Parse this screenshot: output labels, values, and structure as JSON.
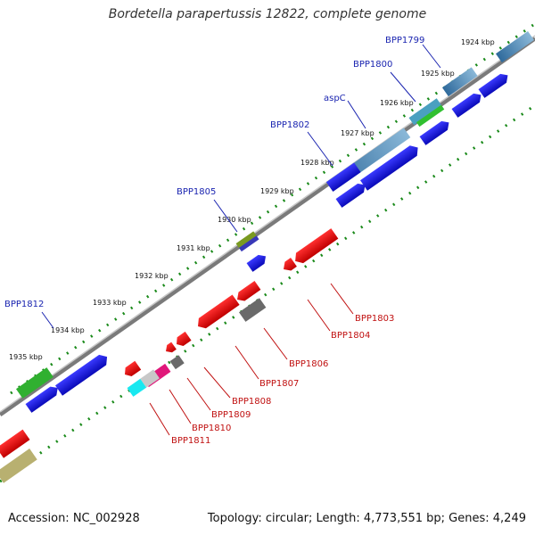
{
  "title": "Bordetella parapertussis 12822, complete genome",
  "footer": {
    "accession": "Accession: NC_002928",
    "stats": "Topology: circular; Length: 4,773,551 bp; Genes: 4,249"
  },
  "colors": {
    "blue_gene": "#1515e0",
    "red_gene": "#ee1010",
    "steel_gene": "#3a78a8",
    "green_gene": "#30b030",
    "gray_gene": "#707070",
    "backbone": "#909090",
    "tick_green": "#1a8a1a",
    "label_blue": "#1a24b0",
    "label_red": "#c01010"
  },
  "kbp_markers": [
    "1924 kbp",
    "1925 kbp",
    "1926 kbp",
    "1927 kbp",
    "1928 kbp",
    "1929 kbp",
    "1930 kbp",
    "1931 kbp",
    "1932 kbp",
    "1933 kbp",
    "1934 kbp",
    "1935 kbp"
  ],
  "gene_labels_top": [
    "BPP1799",
    "BPP1800",
    "aspC",
    "BPP1802",
    "BPP1805",
    "BPP1812"
  ],
  "gene_labels_bottom": [
    "BPP1803",
    "BPP1804",
    "BPP1806",
    "BPP1807",
    "BPP1808",
    "BPP1809",
    "BPP1810",
    "BPP1811"
  ]
}
